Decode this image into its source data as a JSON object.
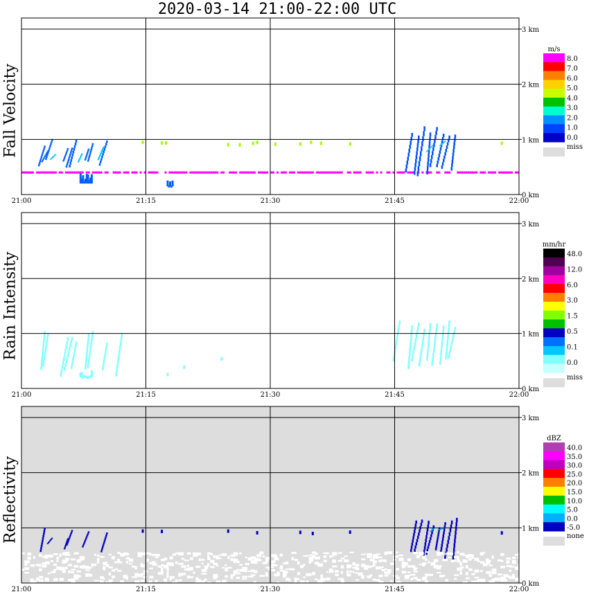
{
  "title": "2020-03-14   21:00-22:00 UTC",
  "colors": {
    "grid": "#000000",
    "missing": "#dddddd"
  },
  "chart_data": [
    {
      "type": "heatmap",
      "name": "Fall Velocity",
      "x_ticks": [
        "21:00",
        "21:15",
        "21:30",
        "21:45",
        "22:00"
      ],
      "y_ticks": [
        "0 km",
        "1 km",
        "2 km",
        "3 km"
      ],
      "xlim_minutes": [
        0,
        60
      ],
      "ylim_km": [
        0,
        3.2
      ],
      "grid": true,
      "background": "#ffffff",
      "colorbar": {
        "unit": "m/s",
        "labels": [
          "8.0",
          "7.0",
          "6.0",
          "5.0",
          "4.0",
          "3.0",
          "2.0",
          "1.0",
          "0.0"
        ],
        "colors": [
          "#ff00ff",
          "#ff0000",
          "#ff8000",
          "#ffd000",
          "#c8ff00",
          "#00c000",
          "#00ffd0",
          "#0090ff",
          "#0040ff",
          "#0000c8"
        ],
        "missing_label": "miss"
      },
      "features": [
        {
          "kind": "streaks",
          "minutes": [
            2.7,
            3.1,
            3.6,
            5.5,
            6.0,
            6.5,
            8.0,
            8.5,
            10.2
          ],
          "height_km": [
            0.45,
            1.05
          ],
          "color": "#0060ff"
        },
        {
          "kind": "streaks",
          "minutes": [
            4.0,
            7.2,
            9.8
          ],
          "height_km": [
            0.55,
            0.95
          ],
          "color": "#00c8ff"
        },
        {
          "kind": "blob",
          "minutes": [
            7.0,
            8.5
          ],
          "height_km": [
            0.2,
            0.4
          ],
          "color": "#0060ff"
        },
        {
          "kind": "blob",
          "minutes": [
            17.5,
            18.2
          ],
          "height_km": [
            0.15,
            0.3
          ],
          "color": "#0060ff"
        },
        {
          "kind": "layer",
          "minutes": [
            0,
            60
          ],
          "height_km": [
            0.38,
            0.42
          ],
          "color": "#ff00ff"
        },
        {
          "kind": "dots",
          "minutes": [
            14.5,
            16.8,
            17.3,
            24.8,
            26.2,
            27.8,
            28.3,
            30.5,
            33.5,
            34.8,
            36.0,
            39.5,
            57.8
          ],
          "height_km": [
            0.92,
            0.98
          ],
          "color": "#a0ff00"
        },
        {
          "kind": "streaks",
          "minutes": [
            47.0,
            47.8,
            48.5,
            49.2,
            50.0,
            50.8,
            51.5,
            52.2
          ],
          "height_km": [
            0.3,
            1.25
          ],
          "color": "#0050ff"
        },
        {
          "kind": "streaks",
          "minutes": [
            49.5,
            51.0
          ],
          "height_km": [
            0.7,
            1.1
          ],
          "color": "#00c8ff"
        }
      ]
    },
    {
      "type": "heatmap",
      "name": "Rain Intensity",
      "x_ticks": [
        "21:00",
        "21:15",
        "21:30",
        "21:45",
        "22:00"
      ],
      "y_ticks": [
        "0 km",
        "1 km",
        "2 km",
        "3 km"
      ],
      "xlim_minutes": [
        0,
        60
      ],
      "ylim_km": [
        0,
        3.2
      ],
      "grid": true,
      "background": "#ffffff",
      "colorbar": {
        "unit": "mm/hr",
        "labels": [
          "48.0",
          "12.0",
          "6.0",
          "3.0",
          "1.5",
          "0.5",
          "0.1",
          "0.0"
        ],
        "colors": [
          "#000000",
          "#500050",
          "#a000a0",
          "#ff00c0",
          "#ff0000",
          "#ff8000",
          "#ffff00",
          "#80ff00",
          "#00c000",
          "#0000c0",
          "#0070ff",
          "#00c8ff",
          "#80ffff",
          "#c8ffff"
        ],
        "missing_label": "miss"
      },
      "features": [
        {
          "kind": "streaks",
          "minutes": [
            2.7,
            3.1,
            5.5,
            6.0,
            6.5,
            8.0,
            8.5,
            10.2,
            12.0
          ],
          "height_km": [
            0.2,
            1.05
          ],
          "color": "#80ffff"
        },
        {
          "kind": "blob",
          "minutes": [
            7.0,
            8.5
          ],
          "height_km": [
            0.2,
            0.35
          ],
          "color": "#80ffff"
        },
        {
          "kind": "dots",
          "minutes": [
            17.5,
            19.5,
            24.0
          ],
          "height_km": [
            0.25,
            0.6
          ],
          "color": "#80ffff"
        },
        {
          "kind": "streaks",
          "minutes": [
            45.5,
            47.0,
            47.8,
            48.5,
            49.2,
            50.0,
            50.8,
            51.5,
            52.2
          ],
          "height_km": [
            0.35,
            1.25
          ],
          "color": "#80ffff"
        }
      ]
    },
    {
      "type": "heatmap",
      "name": "Reflectivity",
      "x_ticks": [
        "21:00",
        "21:15",
        "21:30",
        "21:45",
        "22:00"
      ],
      "y_ticks": [
        "0 km",
        "1 km",
        "2 km",
        "3 km"
      ],
      "xlim_minutes": [
        0,
        60
      ],
      "ylim_km": [
        0,
        3.2
      ],
      "grid": true,
      "background": "#dddddd",
      "colorbar": {
        "unit": "dBZ",
        "labels": [
          "40.0",
          "35.0",
          "30.0",
          "25.0",
          "20.0",
          "15.0",
          "10.0",
          "5.0",
          "0.0",
          "-5.0"
        ],
        "colors": [
          "#b040b0",
          "#ff00ff",
          "#c000c0",
          "#ff0000",
          "#ff8000",
          "#ffff00",
          "#00c000",
          "#00ffff",
          "#00b0ff",
          "#0000c0"
        ],
        "missing_label": "none"
      },
      "features": [
        {
          "kind": "streaks",
          "minutes": [
            2.7,
            3.6,
            5.5,
            6.0,
            8.0,
            10.2
          ],
          "height_km": [
            0.55,
            1.05
          ],
          "color": "#0000c0"
        },
        {
          "kind": "dots",
          "minutes": [
            14.5,
            16.8,
            24.8,
            28.3,
            33.5,
            35.0,
            39.5,
            57.8
          ],
          "height_km": [
            0.92,
            0.98
          ],
          "color": "#0000c0"
        },
        {
          "kind": "streaks",
          "minutes": [
            47.5,
            48.2,
            49.0,
            49.6,
            50.3,
            51.0,
            51.8,
            52.4
          ],
          "height_km": [
            0.4,
            1.25
          ],
          "color": "#0000c0"
        },
        {
          "kind": "streaks",
          "minutes": [
            49.6,
            51.0
          ],
          "height_km": [
            0.9,
            1.2
          ],
          "color": "#00a0ff"
        },
        {
          "kind": "white",
          "minutes": [
            0,
            60
          ],
          "height_km": [
            0.0,
            0.55
          ],
          "color": "#ffffff"
        }
      ]
    }
  ]
}
